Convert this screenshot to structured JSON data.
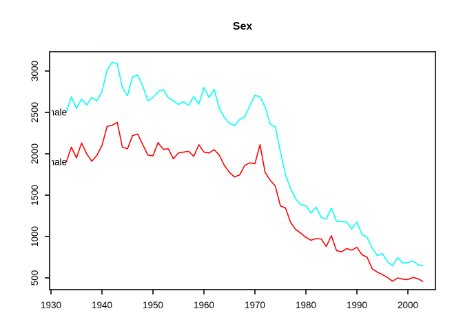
{
  "title": "Sex",
  "colors": {
    "male_line": "#00FFFF",
    "female_line": "#FF0000",
    "axis": "#000000",
    "background": "#FFFFFF"
  },
  "left_labels": {
    "male": "male",
    "female": "female"
  },
  "x_tick_labels": [
    "1930",
    "1940",
    "1950",
    "1960",
    "1970",
    "1980",
    "1990",
    "2000"
  ],
  "y_tick_labels": [
    "500",
    "1000",
    "1500",
    "2000",
    "2500",
    "3000"
  ],
  "chart_data": {
    "type": "line",
    "title": "Sex",
    "xlabel": "",
    "ylabel": "",
    "grid": false,
    "legend_position": "labels-at-line-start-clipped-at-left-plot-edge",
    "xticks": [
      1930,
      1940,
      1950,
      1960,
      1970,
      1980,
      1990,
      2000
    ],
    "yticks": [
      500,
      1000,
      1500,
      2000,
      2500,
      3000
    ],
    "xlim": [
      1929.7,
      2005.7
    ],
    "ylim": [
      358,
      3233
    ],
    "x": [
      1933,
      1934,
      1935,
      1936,
      1937,
      1938,
      1939,
      1940,
      1941,
      1942,
      1943,
      1944,
      1945,
      1946,
      1947,
      1948,
      1949,
      1950,
      1951,
      1952,
      1953,
      1954,
      1955,
      1956,
      1957,
      1958,
      1959,
      1960,
      1961,
      1962,
      1963,
      1964,
      1965,
      1966,
      1967,
      1968,
      1969,
      1970,
      1971,
      1972,
      1973,
      1974,
      1975,
      1976,
      1977,
      1978,
      1979,
      1980,
      1981,
      1982,
      1983,
      1984,
      1985,
      1986,
      1987,
      1988,
      1989,
      1990,
      1991,
      1992,
      1993,
      1994,
      1995,
      1996,
      1997,
      1998,
      1999,
      2000,
      2001,
      2002,
      2003
    ],
    "series": [
      {
        "name": "male",
        "color": "#00FFFF",
        "start_value_label_y": 2500,
        "values": [
          2500,
          2690,
          2550,
          2660,
          2590,
          2680,
          2640,
          2750,
          3010,
          3105,
          3090,
          2800,
          2700,
          2930,
          2950,
          2820,
          2640,
          2680,
          2750,
          2775,
          2680,
          2640,
          2595,
          2630,
          2585,
          2690,
          2600,
          2800,
          2680,
          2780,
          2550,
          2440,
          2370,
          2340,
          2415,
          2445,
          2580,
          2705,
          2690,
          2565,
          2360,
          2325,
          2025,
          1745,
          1580,
          1455,
          1385,
          1370,
          1285,
          1355,
          1230,
          1210,
          1345,
          1185,
          1180,
          1175,
          1090,
          1175,
          1025,
          990,
          860,
          770,
          795,
          695,
          645,
          745,
          680,
          685,
          705,
          660,
          645
        ]
      },
      {
        "name": "female",
        "color": "#FF0000",
        "start_value_label_y": 1900,
        "values": [
          1900,
          2080,
          1950,
          2130,
          2000,
          1910,
          1980,
          2100,
          2330,
          2345,
          2380,
          2080,
          2060,
          2220,
          2240,
          2110,
          1985,
          1975,
          2135,
          2055,
          2060,
          1940,
          2010,
          2020,
          2030,
          1970,
          2110,
          2020,
          2010,
          2050,
          1985,
          1860,
          1775,
          1720,
          1745,
          1860,
          1890,
          1880,
          2110,
          1775,
          1680,
          1610,
          1370,
          1345,
          1170,
          1085,
          1040,
          990,
          955,
          975,
          970,
          880,
          1010,
          830,
          815,
          855,
          835,
          870,
          780,
          750,
          610,
          570,
          540,
          505,
          460,
          500,
          485,
          480,
          505,
          490,
          455
        ]
      }
    ]
  }
}
